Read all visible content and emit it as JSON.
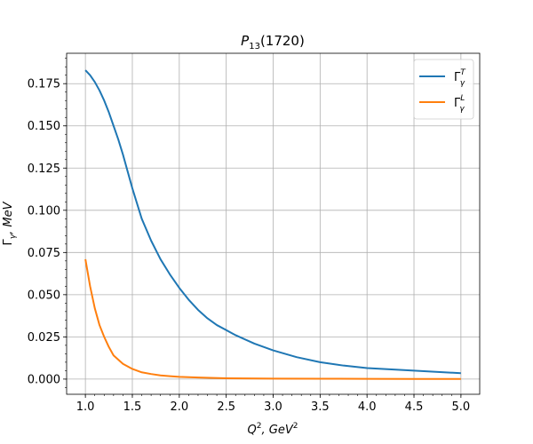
{
  "chart_data": {
    "type": "line",
    "title_main": "P",
    "title_sub": "13",
    "title_rest": "(1720)",
    "xlabel_main": "Q",
    "xlabel_sup": "2",
    "xlabel_mid": ", GeV",
    "xlabel_sup2": "2",
    "ylabel_main": "Γ",
    "ylabel_sub": "γ",
    "ylabel_rest": ", MeV",
    "xlim": [
      0.8,
      5.2
    ],
    "ylim": [
      -0.009,
      0.193
    ],
    "xticks": [
      "1.0",
      "1.5",
      "2.0",
      "2.5",
      "3.0",
      "3.5",
      "4.0",
      "4.5",
      "5.0"
    ],
    "yticks": [
      "0.000",
      "0.025",
      "0.050",
      "0.075",
      "0.100",
      "0.125",
      "0.150",
      "0.175"
    ],
    "grid": true,
    "legend_position": "top-right",
    "series": [
      {
        "name_main": "Γ",
        "name_sup": "T",
        "name_sub": "γ",
        "color": "#1f77b4",
        "x": [
          1.0,
          1.05,
          1.1,
          1.15,
          1.2,
          1.25,
          1.3,
          1.35,
          1.4,
          1.45,
          1.5,
          1.6,
          1.7,
          1.8,
          1.9,
          2.0,
          2.1,
          2.2,
          2.3,
          2.4,
          2.5,
          2.6,
          2.8,
          3.0,
          3.25,
          3.5,
          3.75,
          4.0,
          4.5,
          5.0
        ],
        "y": [
          0.183,
          0.18,
          0.176,
          0.171,
          0.165,
          0.158,
          0.15,
          0.142,
          0.133,
          0.123,
          0.113,
          0.095,
          0.082,
          0.071,
          0.062,
          0.054,
          0.047,
          0.041,
          0.036,
          0.032,
          0.029,
          0.026,
          0.021,
          0.017,
          0.013,
          0.01,
          0.008,
          0.0065,
          0.005,
          0.0035
        ]
      },
      {
        "name_main": "Γ",
        "name_sup": "L",
        "name_sub": "γ",
        "color": "#ff7f0e",
        "x": [
          1.0,
          1.05,
          1.1,
          1.15,
          1.2,
          1.25,
          1.3,
          1.4,
          1.5,
          1.6,
          1.7,
          1.8,
          1.9,
          2.0,
          2.2,
          2.5,
          3.0,
          3.5,
          4.0,
          4.5,
          5.0
        ],
        "y": [
          0.071,
          0.055,
          0.042,
          0.032,
          0.025,
          0.019,
          0.014,
          0.009,
          0.006,
          0.004,
          0.003,
          0.0022,
          0.0017,
          0.0013,
          0.0009,
          0.0005,
          0.0003,
          0.0002,
          0.00015,
          0.0001,
          0.0001
        ]
      }
    ]
  }
}
